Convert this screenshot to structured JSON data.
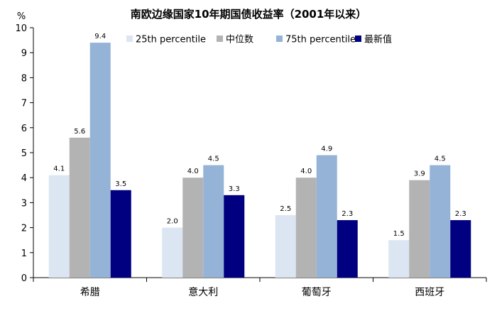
{
  "chart_data": {
    "type": "bar",
    "title": "南欧边缘国家10年期国债收益率（2001年以来）",
    "y_unit": "%",
    "ylim": [
      0,
      10
    ],
    "yticks": [
      0,
      1,
      2,
      3,
      4,
      5,
      6,
      7,
      8,
      9,
      10
    ],
    "grid": false,
    "legend_position": "top-right",
    "categories": [
      "希腊",
      "意大利",
      "葡萄牙",
      "西班牙"
    ],
    "series": [
      {
        "name": "25th percentile",
        "color": "#dce6f2",
        "values": [
          4.1,
          2.0,
          2.5,
          1.5
        ],
        "labels": [
          "4.1",
          "2.0",
          "2.5",
          "1.5"
        ]
      },
      {
        "name": "中位数",
        "color": "#b3b3b3",
        "values": [
          5.6,
          4.0,
          4.0,
          3.9
        ],
        "labels": [
          "5.6",
          "4.0",
          "4.0",
          "3.9"
        ]
      },
      {
        "name": "75th percentile",
        "color": "#95b3d7",
        "values": [
          9.4,
          4.5,
          4.9,
          4.5
        ],
        "labels": [
          "9.4",
          "4.5",
          "4.9",
          "4.5"
        ]
      },
      {
        "name": "最新值",
        "color": "#000080",
        "values": [
          3.5,
          3.3,
          2.3,
          2.3
        ],
        "labels": [
          "3.5",
          "3.3",
          "2.3",
          "2.3"
        ]
      }
    ]
  }
}
